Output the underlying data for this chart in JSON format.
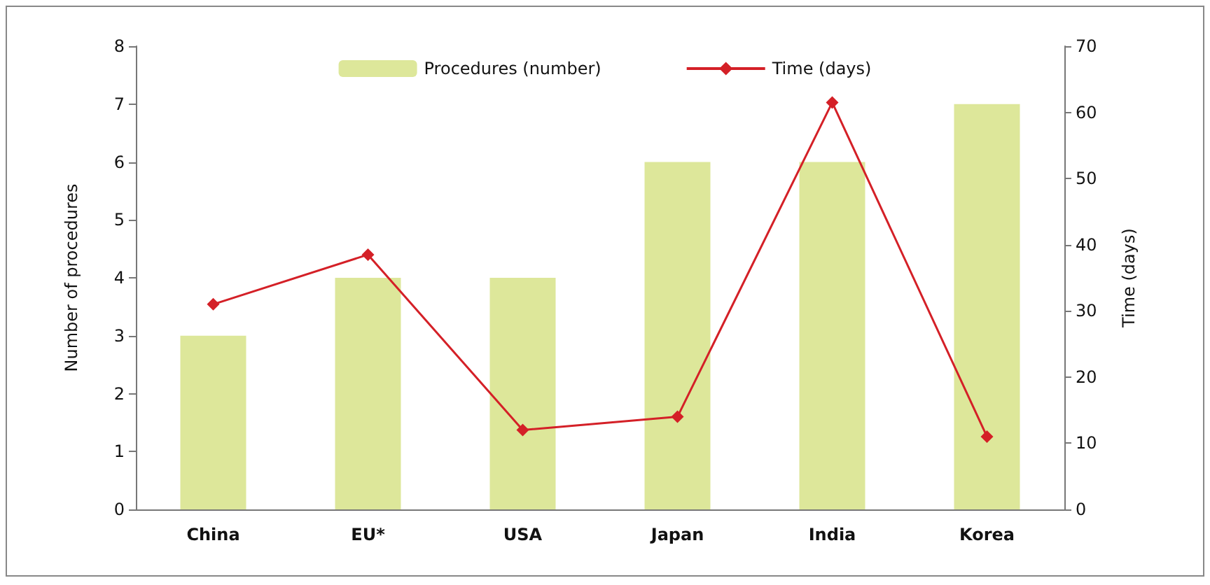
{
  "chart_data": {
    "type": "bar",
    "categories": [
      "China",
      "EU*",
      "USA",
      "Japan",
      "India",
      "Korea"
    ],
    "ylabel": "Number of procedures",
    "y2label": "Time (days)",
    "ylim": [
      0,
      8
    ],
    "yticks": [
      0,
      1,
      2,
      3,
      4,
      5,
      6,
      7,
      8
    ],
    "y2lim": [
      0,
      70
    ],
    "y2ticks": [
      0,
      10,
      20,
      30,
      40,
      50,
      60,
      70
    ],
    "series": [
      {
        "name": "Procedures (number)",
        "color": "#dde79a",
        "values": [
          3,
          4,
          4,
          6,
          6,
          7
        ]
      },
      {
        "name": "Time (days)",
        "type": "line",
        "axis": "y2",
        "color": "#d42027",
        "marker": "diamond",
        "line_style": "solid",
        "values": [
          31,
          38.5,
          12,
          14,
          61.5,
          11
        ]
      }
    ],
    "legend": "top",
    "grid": false
  }
}
